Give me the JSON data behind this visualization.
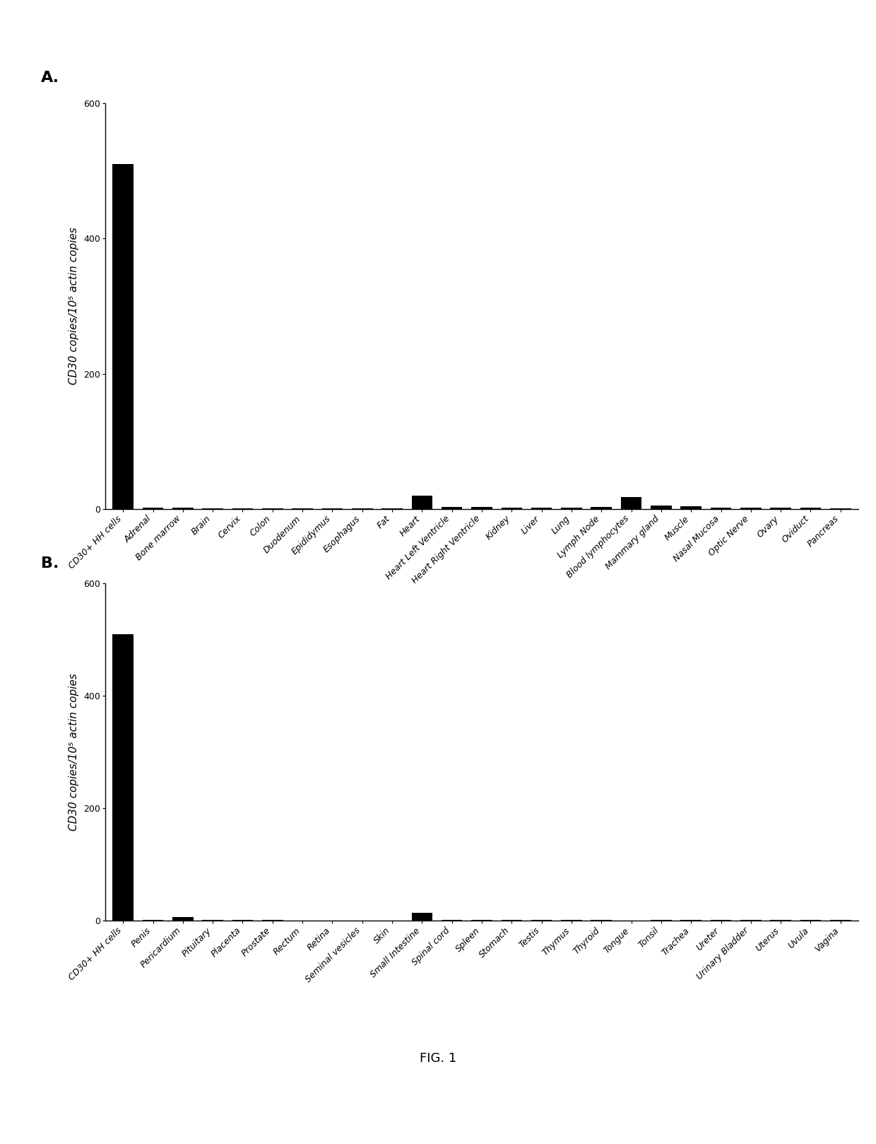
{
  "panel_A": {
    "categories": [
      "CD30+ HH cells",
      "Adrenal",
      "Bone marrow",
      "Brain",
      "Cervix",
      "Colon",
      "Duodenum",
      "Epididymus",
      "Esophagus",
      "Fat",
      "Heart",
      "Heart Left Ventricle",
      "Heart Right Ventricle",
      "Kidney",
      "Liver",
      "Lung",
      "Lymph Node",
      "Blood lymphocytes",
      "Mammary gland",
      "Muscle",
      "Nasal Mucosa",
      "Optic Nerve",
      "Ovary",
      "Oviduct",
      "Pancreas"
    ],
    "values": [
      510,
      2,
      2,
      1,
      1,
      1,
      1,
      1,
      1,
      1,
      20,
      3,
      3,
      2,
      2,
      2,
      3,
      18,
      5,
      4,
      2,
      2,
      2,
      2,
      1
    ],
    "ylabel": "CD30 copies/10⁵ actin copies",
    "ylim": [
      0,
      600
    ],
    "yticks": [
      0,
      200,
      400,
      600
    ]
  },
  "panel_B": {
    "categories": [
      "CD30+ HH cells",
      "Penis",
      "Pericardium",
      "Pituitary",
      "Placenta",
      "Prostate",
      "Rectum",
      "Retina",
      "Seminal vesicles",
      "Skin",
      "Small Intestine",
      "Spinal cord",
      "Spleen",
      "Stomach",
      "Testis",
      "Thymus",
      "Thyroid",
      "Tongue",
      "Tonsil",
      "Trachea",
      "Ureter",
      "Urinary Bladder",
      "Uterus",
      "Uvula",
      "Vagina"
    ],
    "values": [
      510,
      2,
      7,
      2,
      2,
      2,
      1,
      1,
      1,
      1,
      15,
      2,
      2,
      2,
      2,
      2,
      2,
      1,
      2,
      2,
      2,
      2,
      2,
      2,
      2
    ],
    "ylabel": "CD30 copies/10⁵ actin copies",
    "ylim": [
      0,
      600
    ],
    "yticks": [
      0,
      200,
      400,
      600
    ]
  },
  "bar_color": "#000000",
  "fig_label_A": "A.",
  "fig_label_B": "B.",
  "fig_caption": "FIG. 1",
  "background_color": "#ffffff",
  "tick_fontsize": 9,
  "ylabel_fontsize": 11,
  "panel_label_fontsize": 16,
  "caption_fontsize": 13
}
